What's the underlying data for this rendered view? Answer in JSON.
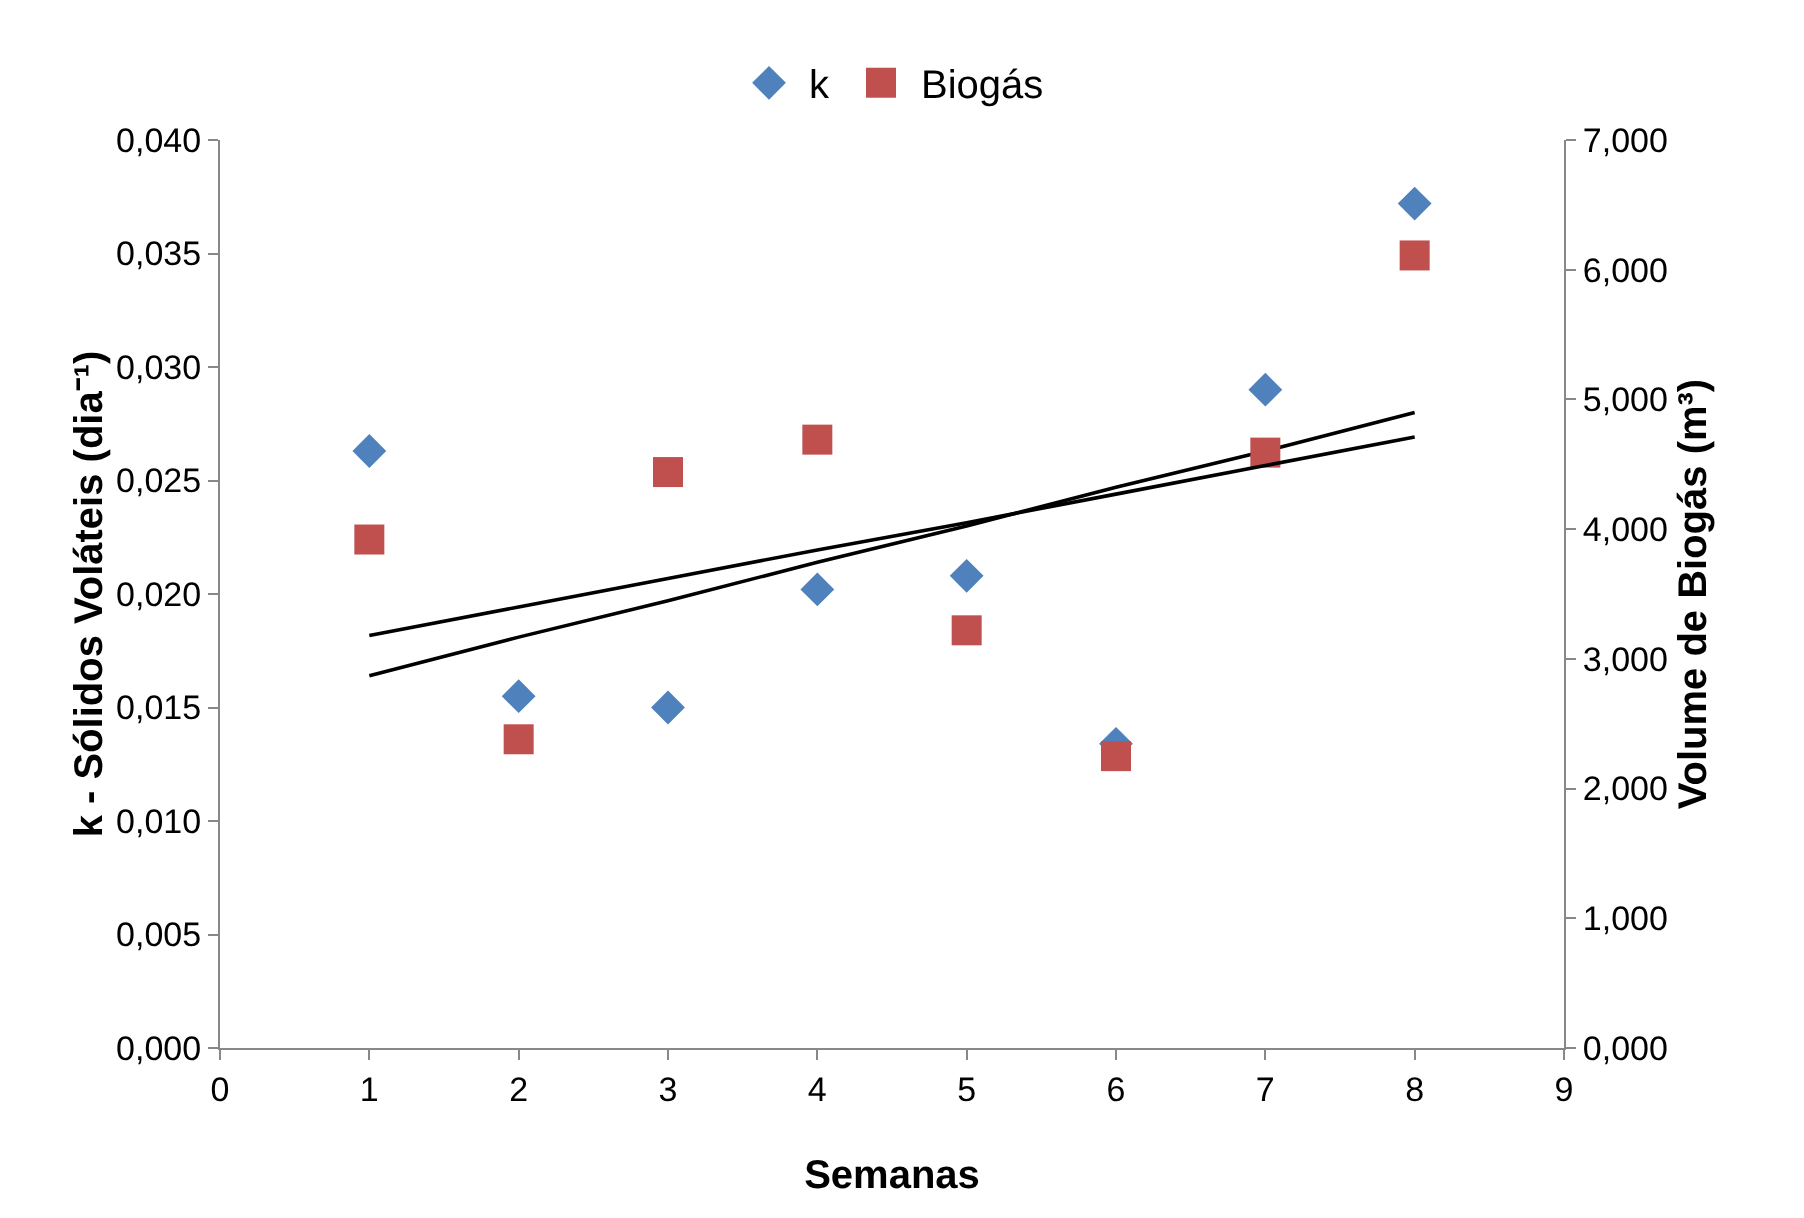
{
  "chart_data": {
    "type": "scatter",
    "xlabel": "Semanas",
    "ylabel": "k - Sólidos Voláteis (dia⁻¹)",
    "y2label": "Volume de Biogás (m³)",
    "x": [
      1,
      2,
      3,
      4,
      5,
      6,
      7,
      8
    ],
    "series": [
      {
        "name": "k",
        "marker": "diamond",
        "color": "#4f81bd",
        "values": [
          0.0263,
          0.0155,
          0.015,
          0.0202,
          0.0208,
          0.0134,
          0.029,
          0.0372
        ]
      },
      {
        "name": "Biogás",
        "marker": "square",
        "color": "#c0504d",
        "axis": "y2",
        "values": [
          3.92,
          2.38,
          4.44,
          4.69,
          3.22,
          2.25,
          4.59,
          6.11
        ]
      },
      {
        "type": "line",
        "marker": "none",
        "color": "#000000",
        "values": [
          0.0164,
          0.0181,
          0.0197,
          0.0214,
          0.023,
          0.0247,
          0.0263,
          0.028
        ]
      },
      {
        "type": "line",
        "marker": "none",
        "color": "#000000",
        "axis": "y2",
        "values": [
          3.18,
          3.4,
          3.62,
          3.84,
          4.05,
          4.27,
          4.49,
          4.71
        ]
      }
    ],
    "xlim": [
      0,
      9
    ],
    "xticks": [
      0,
      1,
      2,
      3,
      4,
      5,
      6,
      7,
      8,
      9
    ],
    "ylim": [
      0,
      0.04
    ],
    "yticks": [
      {
        "value": 0,
        "label": "0,000"
      },
      {
        "value": 0.005,
        "label": "0,005"
      },
      {
        "value": 0.01,
        "label": "0,010"
      },
      {
        "value": 0.015,
        "label": "0,015"
      },
      {
        "value": 0.02,
        "label": "0,020"
      },
      {
        "value": 0.025,
        "label": "0,025"
      },
      {
        "value": 0.03,
        "label": "0,030"
      },
      {
        "value": 0.035,
        "label": "0,035"
      },
      {
        "value": 0.04,
        "label": "0,040"
      }
    ],
    "y2lim": [
      0,
      7
    ],
    "y2ticks": [
      {
        "value": 0,
        "label": "0,000"
      },
      {
        "value": 1,
        "label": "1,000"
      },
      {
        "value": 2,
        "label": "2,000"
      },
      {
        "value": 3,
        "label": "3,000"
      },
      {
        "value": 4,
        "label": "4,000"
      },
      {
        "value": 5,
        "label": "5,000"
      },
      {
        "value": 6,
        "label": "6,000"
      },
      {
        "value": 7,
        "label": "7,000"
      }
    ],
    "grid": false,
    "legend": "top"
  }
}
